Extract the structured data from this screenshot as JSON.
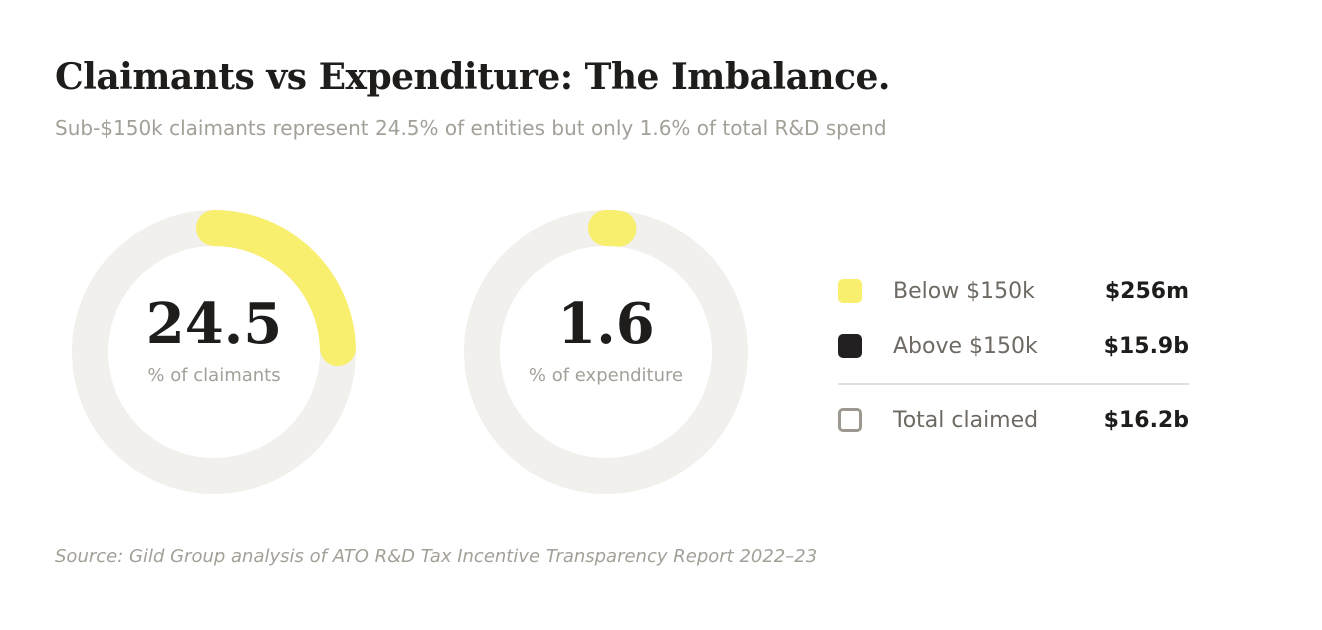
{
  "header": {
    "title": "Claimants vs Expenditure: The Imbalance.",
    "subtitle": "Sub-$150k claimants represent 24.5% of entities but only 1.6% of total R&D spend"
  },
  "colors": {
    "below": "#f9ef6e",
    "above": "#222020",
    "track": "#f1f0ec",
    "total_outline": "#9c9890"
  },
  "chart_data": [
    {
      "type": "pie",
      "variant": "donut",
      "title": "% of claimants",
      "center_value": "24.5",
      "center_label": "% of claimants",
      "slices": [
        {
          "name": "Below $150k",
          "value": 24.5
        },
        {
          "name": "Above $150k",
          "value": 75.5
        }
      ]
    },
    {
      "type": "pie",
      "variant": "donut",
      "title": "% of expenditure",
      "center_value": "1.6",
      "center_label": "% of expenditure",
      "slices": [
        {
          "name": "Below $150k",
          "value": 1.6
        },
        {
          "name": "Above $150k",
          "value": 98.4
        }
      ]
    }
  ],
  "legend": {
    "items": [
      {
        "label": "Below $150k",
        "value": "$256m",
        "swatch": "below"
      },
      {
        "label": "Above $150k",
        "value": "$15.9b",
        "swatch": "above"
      }
    ],
    "total": {
      "label": "Total claimed",
      "value": "$16.2b"
    }
  },
  "footer": {
    "source": "Source: Gild Group analysis of ATO R&D Tax Incentive Transparency Report 2022–23"
  }
}
